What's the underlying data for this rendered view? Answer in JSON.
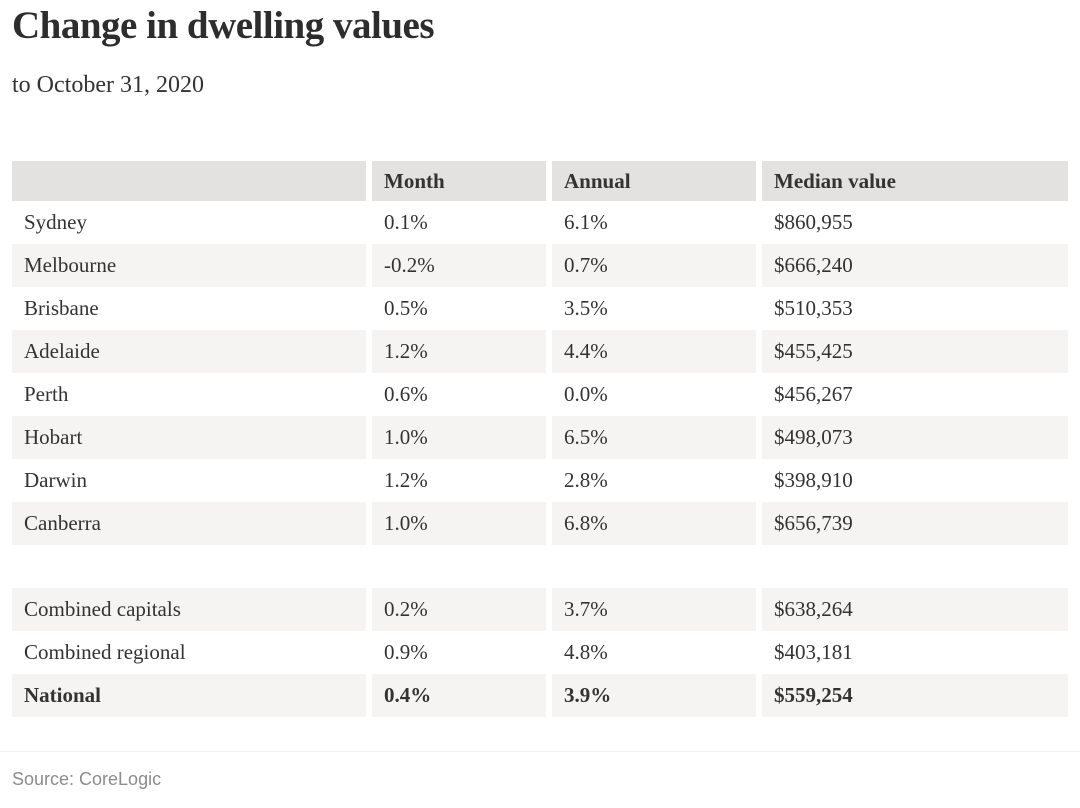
{
  "page": {
    "title": "Change in dwelling values",
    "subtitle": "to October 31, 2020",
    "source": "Source: CoreLogic"
  },
  "colors": {
    "header_row_bg": "#e3e2e0",
    "shaded_row_bg": "#f5f4f2",
    "body_text": "#333333",
    "title_text": "#2d2d2d",
    "source_text": "#8c8c8c",
    "page_bg": "#ffffff"
  },
  "chart_data": {
    "type": "table",
    "title": "Change in dwelling values",
    "subtitle": "to October 31, 2020",
    "columns": [
      "",
      "Month",
      "Annual",
      "Median value"
    ],
    "rows": [
      {
        "label": "Sydney",
        "month": "0.1%",
        "annual": "6.1%",
        "median_value": "$860,955",
        "shaded": false,
        "bold": false,
        "spacer": false
      },
      {
        "label": "Melbourne",
        "month": "-0.2%",
        "annual": "0.7%",
        "median_value": "$666,240",
        "shaded": true,
        "bold": false,
        "spacer": false
      },
      {
        "label": "Brisbane",
        "month": "0.5%",
        "annual": "3.5%",
        "median_value": "$510,353",
        "shaded": false,
        "bold": false,
        "spacer": false
      },
      {
        "label": "Adelaide",
        "month": "1.2%",
        "annual": "4.4%",
        "median_value": "$455,425",
        "shaded": true,
        "bold": false,
        "spacer": false
      },
      {
        "label": "Perth",
        "month": "0.6%",
        "annual": "0.0%",
        "median_value": "$456,267",
        "shaded": false,
        "bold": false,
        "spacer": false
      },
      {
        "label": "Hobart",
        "month": "1.0%",
        "annual": "6.5%",
        "median_value": "$498,073",
        "shaded": true,
        "bold": false,
        "spacer": false
      },
      {
        "label": "Darwin",
        "month": "1.2%",
        "annual": "2.8%",
        "median_value": "$398,910",
        "shaded": false,
        "bold": false,
        "spacer": false
      },
      {
        "label": "Canberra",
        "month": "1.0%",
        "annual": "6.8%",
        "median_value": "$656,739",
        "shaded": true,
        "bold": false,
        "spacer": false
      },
      {
        "label": "",
        "month": "",
        "annual": "",
        "median_value": "",
        "shaded": false,
        "bold": false,
        "spacer": true
      },
      {
        "label": "Combined capitals",
        "month": "0.2%",
        "annual": "3.7%",
        "median_value": "$638,264",
        "shaded": true,
        "bold": false,
        "spacer": false
      },
      {
        "label": "Combined regional",
        "month": "0.9%",
        "annual": "4.8%",
        "median_value": "$403,181",
        "shaded": false,
        "bold": false,
        "spacer": false
      },
      {
        "label": "National",
        "month": "0.4%",
        "annual": "3.9%",
        "median_value": "$559,254",
        "shaded": true,
        "bold": true,
        "spacer": false
      }
    ],
    "source": "Source: CoreLogic",
    "layout": {
      "grid": "off",
      "legend": "none",
      "striped": true
    }
  }
}
